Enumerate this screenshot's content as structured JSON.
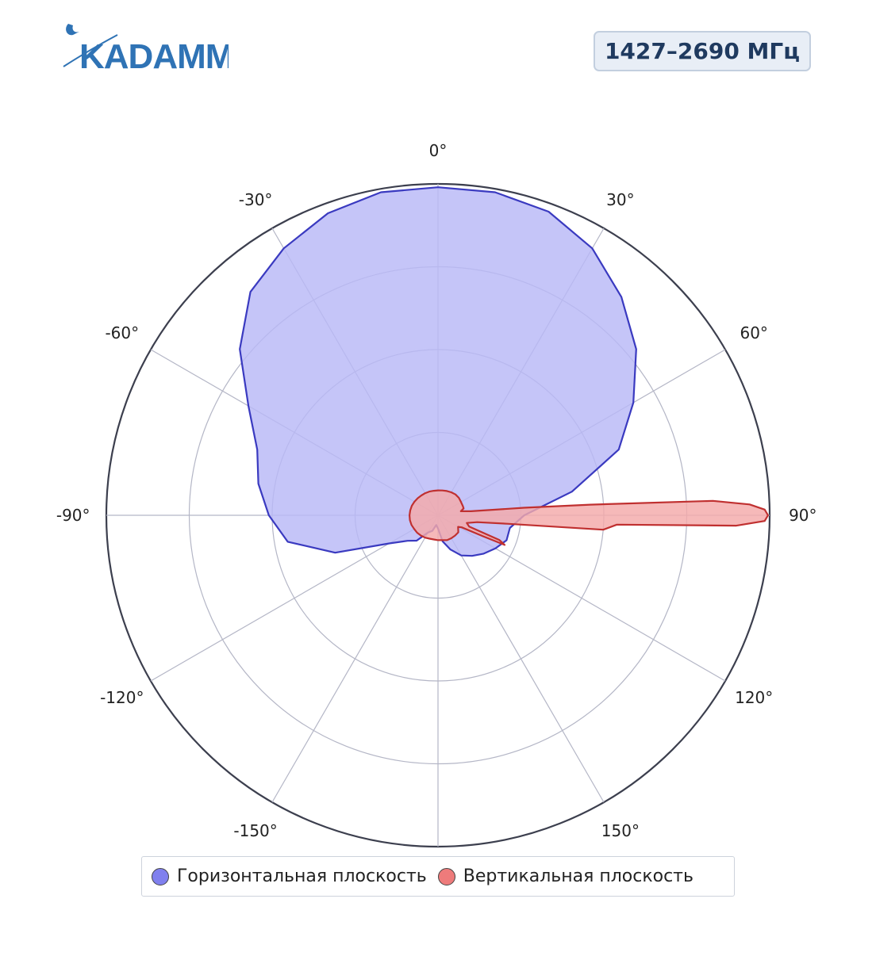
{
  "logo": {
    "text": "KADAMM",
    "color": "#2f73b5"
  },
  "badge": {
    "frequency": "1427–2690 МГц"
  },
  "chart_data": {
    "type": "polar",
    "title": "",
    "angle_unit": "deg",
    "theta_zero": "top",
    "theta_direction": "clockwise",
    "angular_ticks": [
      0,
      30,
      60,
      90,
      120,
      150,
      180,
      -150,
      -120,
      -90,
      -60,
      -30
    ],
    "angular_tick_labels": [
      "0°",
      "30°",
      "60°",
      "90°",
      "120°",
      "150°",
      "",
      "-150°",
      "-120°",
      "-90°",
      "-60°",
      "-30°"
    ],
    "r_range": [
      0,
      1
    ],
    "r_grid": [
      0.25,
      0.5,
      0.75,
      1.0
    ],
    "grid": true,
    "legend_position": "bottom",
    "series": [
      {
        "name": "Горизонтальная плоскость",
        "color": "#8080ee",
        "fill": "#b8b8f6",
        "line": "#3a3ac0",
        "theta": [
          0,
          10,
          20,
          30,
          40,
          50,
          60,
          70,
          80,
          90,
          100,
          110,
          120,
          130,
          140,
          150,
          160,
          170,
          180,
          -170,
          -160,
          -150,
          -140,
          -130,
          -120,
          -110,
          -100,
          -90,
          -80,
          -70,
          -60,
          -50,
          -40,
          -30,
          -20,
          -10
        ],
        "r": [
          0.99,
          0.99,
          0.975,
          0.93,
          0.86,
          0.78,
          0.68,
          0.58,
          0.41,
          0.26,
          0.22,
          0.22,
          0.2,
          0.18,
          0.16,
          0.14,
          0.11,
          0.08,
          0.04,
          0.03,
          0.05,
          0.06,
          0.1,
          0.12,
          0.17,
          0.33,
          0.46,
          0.51,
          0.55,
          0.58,
          0.66,
          0.78,
          0.88,
          0.93,
          0.97,
          0.99
        ]
      },
      {
        "name": "Вертикальная плоскость",
        "color": "#ee7b7b",
        "fill": "#f4aaaa",
        "line": "#c03030",
        "theta": [
          0,
          10,
          20,
          30,
          40,
          50,
          60,
          70,
          75,
          80,
          83,
          85,
          86,
          87,
          88,
          89,
          90,
          91,
          92,
          93,
          95,
          97,
          100,
          105,
          110,
          112,
          114,
          115,
          117,
          120,
          130,
          140,
          150,
          160,
          170,
          180,
          -170,
          -160,
          -150,
          -140,
          -130,
          -120,
          -110,
          -100,
          -90,
          -80,
          -70,
          -60,
          -50,
          -40,
          -30,
          -20,
          -10
        ],
        "r": [
          0.075,
          0.076,
          0.078,
          0.08,
          0.082,
          0.082,
          0.08,
          0.08,
          0.08,
          0.07,
          0.1,
          0.26,
          0.46,
          0.83,
          0.94,
          0.985,
          0.995,
          0.985,
          0.9,
          0.54,
          0.5,
          0.21,
          0.12,
          0.09,
          0.1,
          0.2,
          0.22,
          0.15,
          0.08,
          0.07,
          0.08,
          0.08,
          0.08,
          0.08,
          0.076,
          0.075,
          0.074,
          0.075,
          0.078,
          0.08,
          0.082,
          0.083,
          0.085,
          0.086,
          0.086,
          0.085,
          0.084,
          0.082,
          0.08,
          0.078,
          0.077,
          0.076,
          0.075
        ]
      }
    ]
  },
  "legend": {
    "items": [
      {
        "label": "Горизонтальная плоскость",
        "color": "#8080ee"
      },
      {
        "label": "Вертикальная плоскость",
        "color": "#ee7b7b"
      }
    ]
  }
}
